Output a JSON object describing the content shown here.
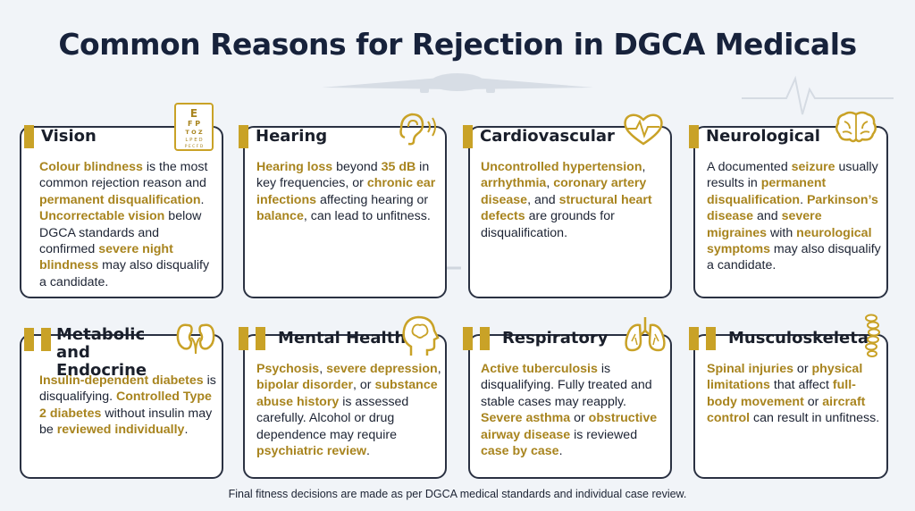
{
  "title": "Common Reasons for Rejection in DGCA Medicals",
  "eye_chart_letters": [
    "E",
    "F P",
    "T O Z",
    "L P E D",
    "P E C F D"
  ],
  "cards": [
    {
      "title": "Vision",
      "segments": [
        {
          "t": "Colour blindness",
          "b": true
        },
        {
          "t": " is the most common rejection reason and ",
          "b": false
        },
        {
          "t": "permanent disqualification",
          "b": true
        },
        {
          "t": ". ",
          "b": false
        },
        {
          "t": "Uncorrectable vision",
          "b": true
        },
        {
          "t": " below DGCA standards and confirmed ",
          "b": false
        },
        {
          "t": "severe night blindness",
          "b": true
        },
        {
          "t": " may also disqualify a candidate.",
          "b": false
        }
      ]
    },
    {
      "title": "Hearing",
      "segments": [
        {
          "t": "Hearing loss",
          "b": true
        },
        {
          "t": " beyond ",
          "b": false
        },
        {
          "t": "35 dB",
          "b": true
        },
        {
          "t": " in key frequencies, or ",
          "b": false
        },
        {
          "t": "chronic ear infections",
          "b": true
        },
        {
          "t": " affecting hearing or ",
          "b": false
        },
        {
          "t": "balance",
          "b": true
        },
        {
          "t": ", can lead to unfitness.",
          "b": false
        }
      ]
    },
    {
      "title": "Cardiovascular",
      "segments": [
        {
          "t": "Uncontrolled hypertension",
          "b": true
        },
        {
          "t": ", ",
          "b": false
        },
        {
          "t": "arrhythmia",
          "b": true
        },
        {
          "t": ", ",
          "b": false
        },
        {
          "t": "coronary artery disease",
          "b": true
        },
        {
          "t": ", and ",
          "b": false
        },
        {
          "t": "structural heart defects",
          "b": true
        },
        {
          "t": " are grounds for disqualification.",
          "b": false
        }
      ]
    },
    {
      "title": "Neurological",
      "segments": [
        {
          "t": "A documented ",
          "b": false
        },
        {
          "t": "seizure",
          "b": true
        },
        {
          "t": " usually results in ",
          "b": false
        },
        {
          "t": "permanent disqualification",
          "b": true
        },
        {
          "t": ". ",
          "b": false
        },
        {
          "t": "Parkinson’s disease",
          "b": true
        },
        {
          "t": " and ",
          "b": false
        },
        {
          "t": "severe migraines",
          "b": true
        },
        {
          "t": " with ",
          "b": false
        },
        {
          "t": "neurological symptoms",
          "b": true
        },
        {
          "t": " may also disqualify a candidate.",
          "b": false
        }
      ]
    },
    {
      "title": "Metabolic and Endocrine",
      "segments": [
        {
          "t": "Insulin-dependent diabetes",
          "b": true
        },
        {
          "t": " is disqualifying. ",
          "b": false
        },
        {
          "t": "Controlled Type 2 diabetes",
          "b": true
        },
        {
          "t": " without insulin may be ",
          "b": false
        },
        {
          "t": "reviewed individually",
          "b": true
        },
        {
          "t": ".",
          "b": false
        }
      ]
    },
    {
      "title": "Mental Health",
      "segments": [
        {
          "t": "Psychosis",
          "b": true
        },
        {
          "t": ", ",
          "b": false
        },
        {
          "t": "severe depression",
          "b": true
        },
        {
          "t": ", ",
          "b": false
        },
        {
          "t": "bipolar disorder",
          "b": true
        },
        {
          "t": ", or ",
          "b": false
        },
        {
          "t": "substance abuse history",
          "b": true
        },
        {
          "t": " is assessed carefully. Alcohol or drug dependence may require ",
          "b": false
        },
        {
          "t": "psychiatric review",
          "b": true
        },
        {
          "t": ".",
          "b": false
        }
      ]
    },
    {
      "title": "Respiratory",
      "segments": [
        {
          "t": "Active tuberculosis",
          "b": true
        },
        {
          "t": " is disqualifying. Fully treated and stable cases may reapply. ",
          "b": false
        },
        {
          "t": "Severe asthma",
          "b": true
        },
        {
          "t": " or ",
          "b": false
        },
        {
          "t": "obstructive airway disease",
          "b": true
        },
        {
          "t": " is reviewed ",
          "b": false
        },
        {
          "t": "case by case",
          "b": true
        },
        {
          "t": ".",
          "b": false
        }
      ]
    },
    {
      "title": "Musculoskeletal",
      "segments": [
        {
          "t": "Spinal injuries",
          "b": true
        },
        {
          "t": " or ",
          "b": false
        },
        {
          "t": "physical limitations",
          "b": true
        },
        {
          "t": " that affect ",
          "b": false
        },
        {
          "t": "full-body movement",
          "b": true
        },
        {
          "t": " or ",
          "b": false
        },
        {
          "t": "aircraft control",
          "b": true
        },
        {
          "t": " can result in unfitness.",
          "b": false
        }
      ]
    }
  ],
  "footer": "Final fitness decisions are made as per DGCA medical standards and individual case review.",
  "colors": {
    "accent": "#c9a227",
    "highlight_text": "#a8841e",
    "title": "#17223b",
    "border": "#2a3142",
    "background": "#f1f4f8"
  },
  "icons": [
    "eye-chart-icon",
    "ear-icon",
    "heart-pulse-icon",
    "brain-icon",
    "kidneys-icon",
    "head-profile-icon",
    "lungs-icon",
    "spine-icon"
  ]
}
